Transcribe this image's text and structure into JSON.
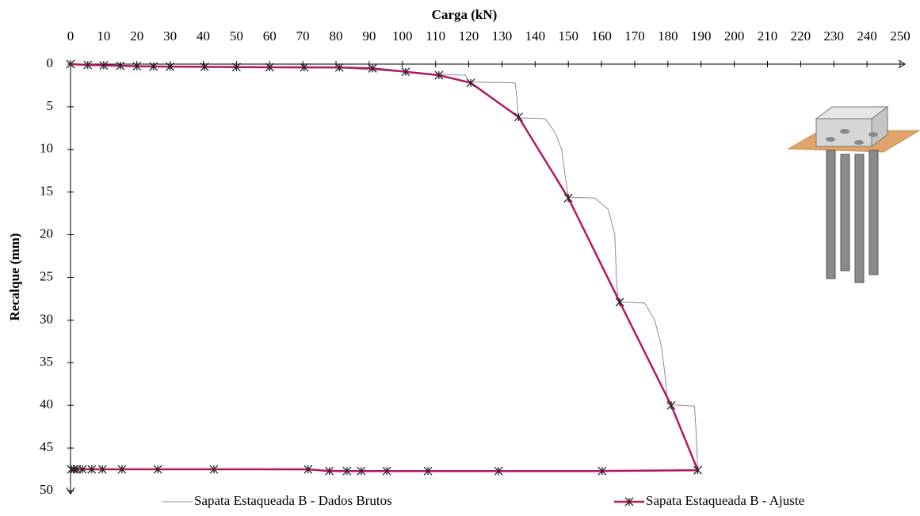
{
  "chart_data": {
    "type": "line",
    "x_label": "Carga (kN)",
    "y_label": "Recalque (mm)",
    "xlim": [
      0,
      250
    ],
    "xticks": [
      0,
      10,
      20,
      30,
      40,
      50,
      60,
      70,
      80,
      90,
      100,
      110,
      120,
      130,
      140,
      150,
      160,
      170,
      180,
      190,
      200,
      210,
      220,
      230,
      240,
      250
    ],
    "ylim": [
      0,
      50
    ],
    "yticks": [
      0,
      5,
      10,
      15,
      20,
      25,
      30,
      35,
      40,
      45,
      50
    ],
    "y_inverted": true,
    "x_axis_position": "top",
    "series": [
      {
        "name": "Sapata Estaqueada B - Dados Brutos",
        "color": "#8c8c8c",
        "markers": false,
        "x": [
          0,
          30,
          80,
          100,
          110,
          119,
          120,
          134,
          134.5,
          135,
          143,
          146,
          148,
          149,
          150,
          158,
          162,
          164,
          164.5,
          165,
          173,
          176,
          178,
          179,
          180,
          188,
          188.5,
          189,
          160,
          107,
          78,
          43,
          15,
          3,
          0.5
        ],
        "values": [
          0,
          0.3,
          0.4,
          0.9,
          1.2,
          1.3,
          2.1,
          2.2,
          4,
          6.3,
          6.4,
          8,
          10,
          13,
          15.6,
          15.7,
          17,
          20,
          25,
          27.9,
          28,
          30,
          33,
          36,
          39.9,
          40.1,
          43,
          47.6,
          47.7,
          47.7,
          47.6,
          47.5,
          47.5,
          47.4,
          47.4
        ]
      },
      {
        "name": "Sapata Estaqueada B - Ajuste",
        "color": "#b5175f",
        "markers": true,
        "x": [
          0,
          5.2,
          10,
          15,
          20,
          25,
          30,
          40.4,
          50,
          60,
          70.4,
          81,
          91,
          101,
          111,
          120.6,
          135,
          150,
          165.5,
          181,
          189,
          160.2,
          129,
          107.7,
          95.3,
          87.6,
          83.3,
          78,
          71.6,
          43.2,
          26.3,
          15.5,
          9.6,
          6.4,
          3.6,
          1.9,
          1,
          0.2
        ],
        "values": [
          0,
          0.1,
          0.15,
          0.2,
          0.25,
          0.28,
          0.3,
          0.32,
          0.35,
          0.37,
          0.38,
          0.4,
          0.5,
          0.9,
          1.3,
          2.2,
          6.2,
          15.7,
          27.9,
          40,
          47.6,
          47.7,
          47.7,
          47.7,
          47.7,
          47.7,
          47.7,
          47.7,
          47.5,
          47.5,
          47.5,
          47.5,
          47.5,
          47.5,
          47.5,
          47.5,
          47.5,
          47.5
        ]
      }
    ]
  }
}
